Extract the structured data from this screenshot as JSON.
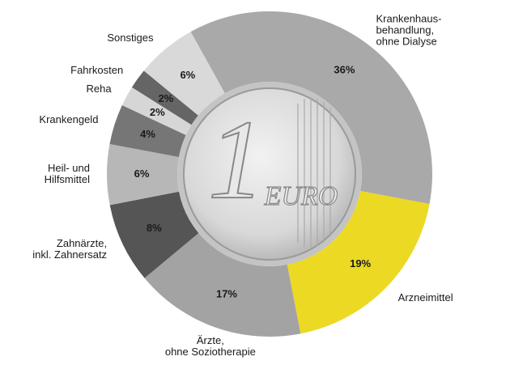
{
  "chart_data": {
    "type": "donut",
    "categories": [
      [
        "Krankenhaus-",
        "behandlung,",
        "ohne Dialyse"
      ],
      [
        "Arzneimittel"
      ],
      [
        "Ärzte,",
        "ohne Soziotherapie"
      ],
      [
        "Zahnärzte,",
        "inkl. Zahnersatz"
      ],
      [
        "Heil- und",
        "Hilfsmittel"
      ],
      [
        "Krankengeld"
      ],
      [
        "Reha"
      ],
      [
        "Fahrkosten"
      ],
      [
        "Sonstiges"
      ]
    ],
    "values": [
      36,
      19,
      17,
      8,
      6,
      4,
      2,
      2,
      6
    ],
    "value_labels": [
      "36%",
      "19%",
      "17%",
      "8%",
      "6%",
      "4%",
      "2%",
      "2%",
      "6%"
    ],
    "colors": [
      "#a9a9a9",
      "#ecd924",
      "#a3a3a3",
      "#555555",
      "#b7b7b7",
      "#767676",
      "#d6d6d6",
      "#656565",
      "#d9d9d9"
    ],
    "center_text": [
      "1",
      "EURO"
    ]
  }
}
